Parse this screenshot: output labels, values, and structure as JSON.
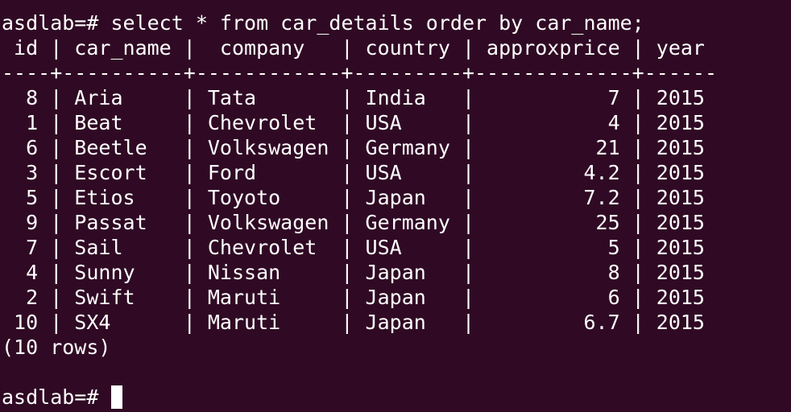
{
  "prompt": "asdlab=# ",
  "command": "select * from car_details order by car_name;",
  "header_line": " id | car_name |  company   | country | approxprice | year",
  "separator_line": "----+----------+------------+---------+-------------+------",
  "rows": [
    "  8 | Aria     | Tata       | India   |           7 | 2015",
    "  1 | Beat     | Chevrolet  | USA     |           4 | 2015",
    "  6 | Beetle   | Volkswagen | Germany |          21 | 2015",
    "  3 | Escort   | Ford       | USA     |         4.2 | 2015",
    "  5 | Etios    | Toyoto     | Japan   |         7.2 | 2015",
    "  9 | Passat   | Volkswagen | Germany |          25 | 2015",
    "  7 | Sail     | Chevrolet  | USA     |           5 | 2015",
    "  4 | Sunny    | Nissan     | Japan   |           8 | 2015",
    "  2 | Swift    | Maruti     | Japan   |           6 | 2015",
    " 10 | SX4      | Maruti     | Japan   |         6.7 | 2015"
  ],
  "row_count_text": "(10 rows)",
  "blank_line": "",
  "prompt_2": "asdlab=# ",
  "colors": {
    "background": "#300a24",
    "text": "#ffffff"
  }
}
